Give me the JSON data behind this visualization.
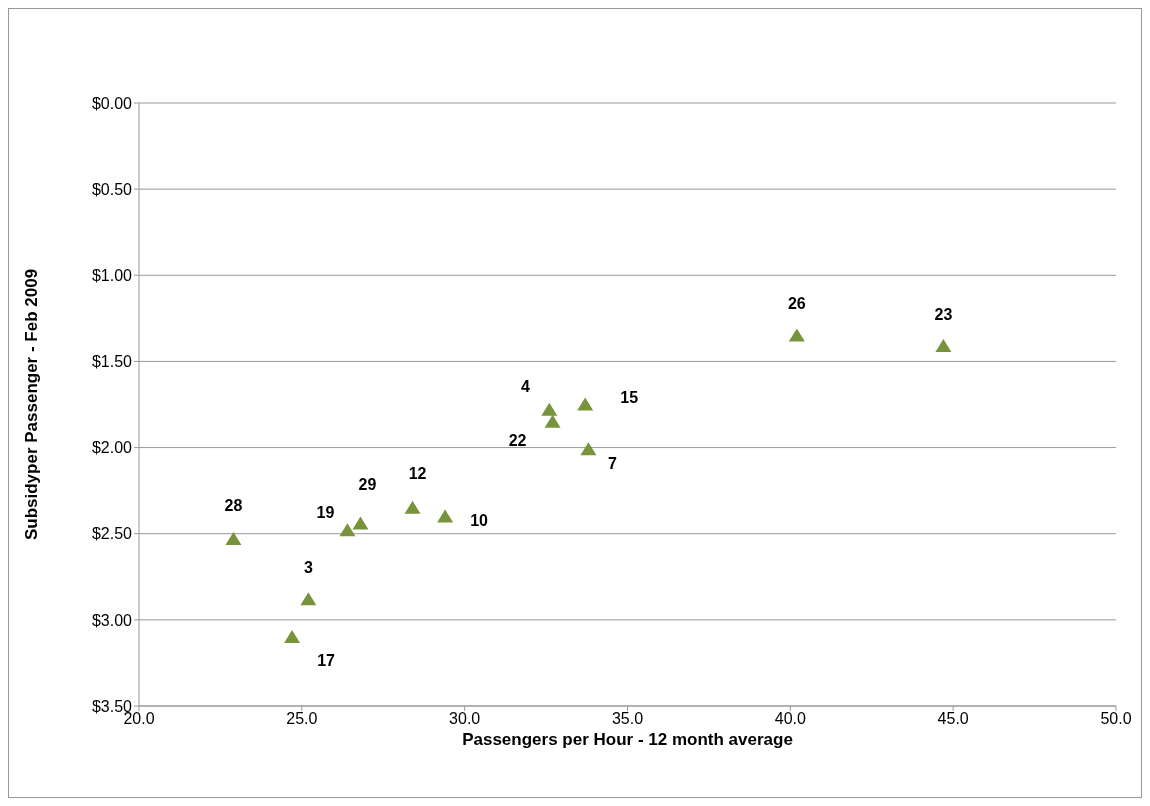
{
  "chart_data": {
    "type": "scatter",
    "xlabel": "Passengers per Hour - 12 month average",
    "ylabel": "Subsidyper Passenger - Feb 2009",
    "series": [
      {
        "color": "#77933c",
        "x": [
          22.9,
          25.2,
          24.7,
          26.4,
          26.8,
          28.4,
          29.4,
          32.6,
          32.7,
          33.7,
          33.8,
          40.2,
          44.7
        ],
        "values": [
          2.53,
          2.88,
          3.1,
          2.48,
          2.44,
          2.35,
          2.4,
          1.78,
          1.85,
          1.75,
          2.01,
          1.35,
          1.41
        ]
      }
    ],
    "annotations": [
      {
        "text": "28",
        "x": 22.9,
        "y": 2.53
      },
      {
        "text": "3",
        "x": 25.2,
        "y": 2.88
      },
      {
        "text": "17",
        "x": 24.7,
        "y": 3.1
      },
      {
        "text": "19",
        "x": 26.4,
        "y": 2.48
      },
      {
        "text": "29",
        "x": 26.8,
        "y": 2.44
      },
      {
        "text": "12",
        "x": 28.4,
        "y": 2.35
      },
      {
        "text": "10",
        "x": 29.4,
        "y": 2.4
      },
      {
        "text": "4",
        "x": 32.6,
        "y": 1.78
      },
      {
        "text": "22",
        "x": 32.7,
        "y": 1.85
      },
      {
        "text": "15",
        "x": 33.7,
        "y": 1.75
      },
      {
        "text": "7",
        "x": 33.8,
        "y": 2.01
      },
      {
        "text": "26",
        "x": 40.2,
        "y": 1.35
      },
      {
        "text": "23",
        "x": 44.7,
        "y": 1.41
      }
    ],
    "xlim": [
      20,
      50
    ],
    "xticks": [
      {
        "value": 20,
        "label": "20.0"
      },
      {
        "value": 25,
        "label": "25.0"
      },
      {
        "value": 30,
        "label": "30.0"
      },
      {
        "value": 35,
        "label": "35.0"
      },
      {
        "value": 40,
        "label": "40.0"
      },
      {
        "value": 45,
        "label": "45.0"
      },
      {
        "value": 50,
        "label": "50.0"
      }
    ],
    "ylim": [
      3.5,
      0
    ],
    "yticks": [
      {
        "value": 0,
        "label": "$0.00"
      },
      {
        "value": 0.5,
        "label": "$0.50"
      },
      {
        "value": 1,
        "label": "$1.00"
      },
      {
        "value": 1.5,
        "label": "$1.50"
      },
      {
        "value": 2,
        "label": "$2.00"
      },
      {
        "value": 2.5,
        "label": "$2.50"
      },
      {
        "value": 3,
        "label": "$3.00"
      },
      {
        "value": 3.5,
        "label": "$3.50"
      }
    ],
    "grid": "y",
    "legend": false,
    "marker": "triangle"
  }
}
